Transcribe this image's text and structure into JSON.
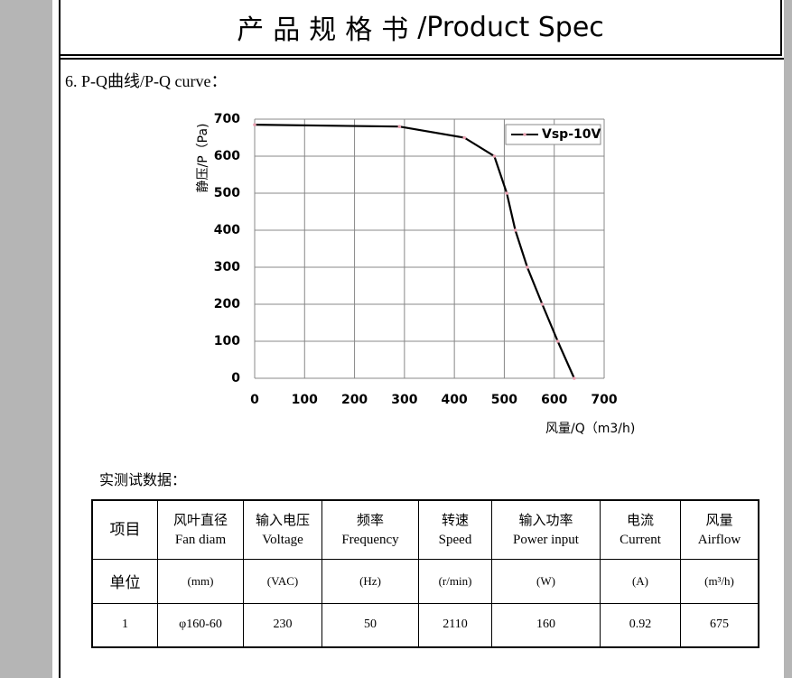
{
  "header": {
    "title_cn": "产品规格书",
    "title_en": "/Product Spec"
  },
  "section": {
    "heading": "6. P-Q曲线/P-Q curve："
  },
  "chart_data": {
    "type": "line",
    "x_label": "风量/Q（m3/h)",
    "y_label": "静压/P（Pa)",
    "x": [
      0,
      290,
      420,
      480,
      505,
      522,
      546,
      576,
      607,
      640
    ],
    "series": [
      {
        "name": "Vsp-10V",
        "color": "#000000",
        "marker_color": "#e8a0b0",
        "values": [
          685,
          680,
          650,
          600,
          500,
          400,
          300,
          200,
          100,
          0
        ]
      }
    ],
    "xlim": [
      0,
      700
    ],
    "xticks": [
      0,
      100,
      200,
      300,
      400,
      500,
      600,
      700
    ],
    "ylim": [
      0,
      700
    ],
    "yticks": [
      0,
      100,
      200,
      300,
      400,
      500,
      600,
      700
    ],
    "grid": true,
    "legend": "top-right"
  },
  "table": {
    "caption": "实测试数据：",
    "header": [
      [
        "项目"
      ],
      [
        "风叶直径",
        "Fan diam"
      ],
      [
        "输入电压",
        "Voltage"
      ],
      [
        "频率",
        "Frequency"
      ],
      [
        "转速",
        "Speed"
      ],
      [
        "输入功率",
        "Power input"
      ],
      [
        "电流",
        "Current"
      ],
      [
        "风量",
        "Airflow"
      ]
    ],
    "rows": [
      [
        "单位",
        "(mm)",
        "(VAC)",
        "(Hz)",
        "(r/min)",
        "(W)",
        "(A)",
        "(m³/h)"
      ],
      [
        "1",
        "φ160-60",
        "230",
        "50",
        "2110",
        "160",
        "0.92",
        "675"
      ]
    ]
  }
}
